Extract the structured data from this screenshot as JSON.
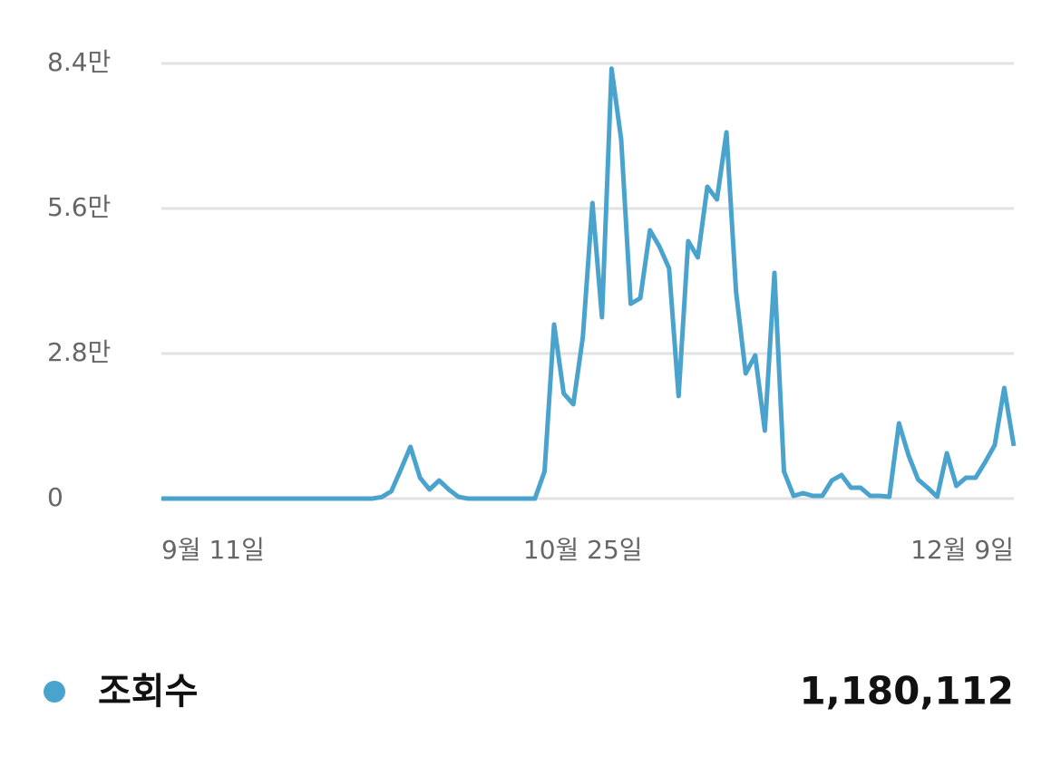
{
  "chart_data": {
    "type": "line",
    "categories": [
      "9월 11일",
      null,
      null,
      null,
      null,
      null,
      null,
      null,
      null,
      null,
      null,
      null,
      null,
      null,
      null,
      null,
      null,
      null,
      null,
      null,
      null,
      null,
      null,
      null,
      null,
      null,
      null,
      null,
      null,
      null,
      null,
      null,
      null,
      null,
      null,
      null,
      null,
      null,
      null,
      null,
      null,
      null,
      null,
      null,
      "10월 25일",
      null,
      null,
      null,
      null,
      null,
      null,
      null,
      null,
      null,
      null,
      null,
      null,
      null,
      null,
      null,
      null,
      null,
      null,
      null,
      null,
      null,
      null,
      null,
      null,
      null,
      null,
      null,
      null,
      null,
      null,
      null,
      null,
      null,
      null,
      null,
      null,
      null,
      null,
      null,
      null,
      null,
      null,
      null,
      null,
      "12월 9일"
    ],
    "series": [
      {
        "name": "조회수",
        "color": "#4aa3cc",
        "values": [
          0,
          0,
          0,
          0,
          0,
          0,
          0,
          0,
          0,
          0,
          0,
          0,
          0,
          0,
          0,
          0,
          0,
          0,
          0,
          0,
          0,
          0,
          0,
          300,
          1400,
          5600,
          10000,
          4000,
          1750,
          3500,
          1750,
          350,
          0,
          0,
          0,
          0,
          0,
          0,
          0,
          0,
          5250,
          33600,
          20300,
          18200,
          31150,
          57050,
          35000,
          83000,
          69300,
          37600,
          38700,
          51800,
          48650,
          44450,
          19800,
          49700,
          46550,
          60200,
          57750,
          70700,
          39900,
          24150,
          27650,
          13125,
          43575,
          5250,
          525,
          1050,
          525,
          525,
          3500,
          4550,
          2100,
          2100,
          525,
          525,
          350,
          14525,
          8400,
          3675,
          2100,
          350,
          8750,
          2450,
          4025,
          4025,
          7000,
          10325,
          21350,
          10150
        ]
      }
    ],
    "total": "1,180,112",
    "ylim": [
      0,
      84000
    ],
    "yticks": [
      0,
      {
        "value": 28000,
        "label": "2.8만"
      },
      {
        "value": 56000,
        "label": "5.6만"
      },
      {
        "value": 84000,
        "label": "8.4만"
      }
    ],
    "grid": true
  }
}
